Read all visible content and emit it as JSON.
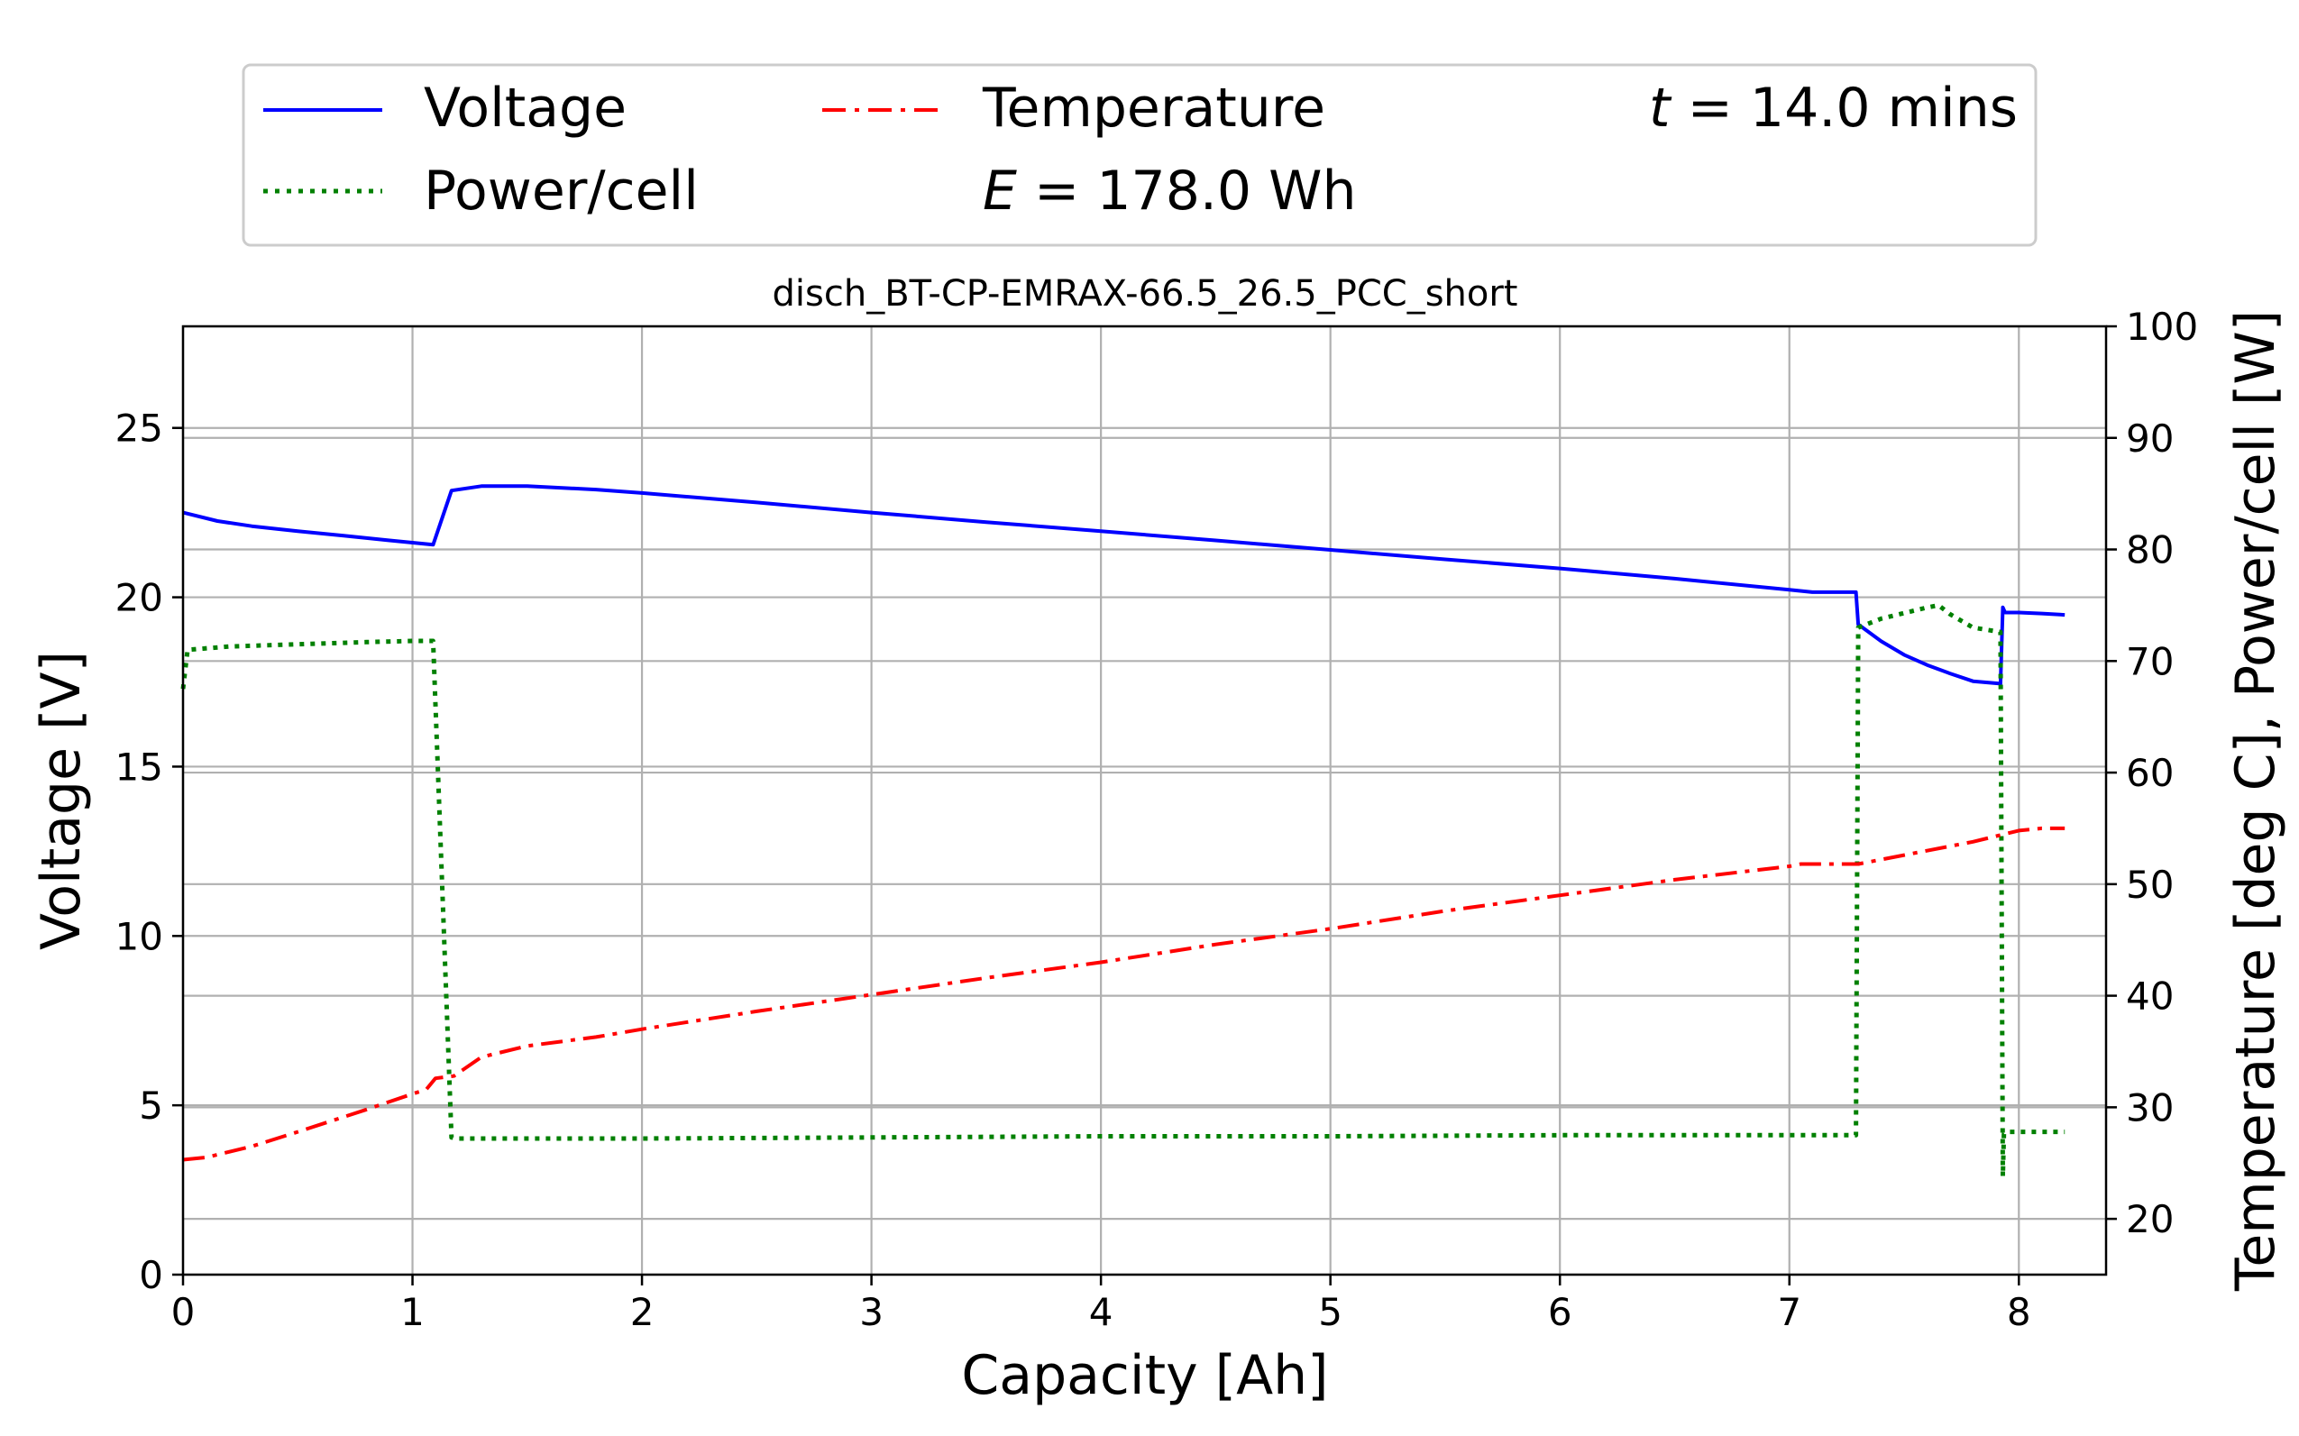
{
  "chart_data": {
    "type": "line",
    "title": "disch_BT-CP-EMRAX-66.5_26.5_PCC_short",
    "xlabel": "Capacity [Ah]",
    "ylabel": "Voltage [V]",
    "y2label": "Temperature [deg C], Power/cell [W]",
    "xlim": [
      0,
      8.38
    ],
    "ylim": [
      0,
      28
    ],
    "y2lim": [
      15,
      100
    ],
    "xticks": [
      "0",
      "1",
      "2",
      "3",
      "4",
      "5",
      "6",
      "7",
      "8"
    ],
    "yticks": [
      "0",
      "5",
      "10",
      "15",
      "20",
      "25"
    ],
    "y2ticks": [
      "20",
      "30",
      "40",
      "50",
      "60",
      "70",
      "80",
      "90",
      "100"
    ],
    "grid": true,
    "legend_position": "top",
    "series": [
      {
        "name": "Voltage",
        "axis": "left",
        "style": "solid",
        "color": "#0000ff",
        "x": [
          0.0,
          0.15,
          0.3,
          0.5,
          0.7,
          0.9,
          1.05,
          1.09,
          1.17,
          1.3,
          1.5,
          1.8,
          2.0,
          2.5,
          3.0,
          3.5,
          4.0,
          4.5,
          5.0,
          5.5,
          6.0,
          6.5,
          7.0,
          7.1,
          7.29,
          7.3,
          7.4,
          7.5,
          7.6,
          7.7,
          7.8,
          7.92,
          7.93,
          7.94,
          8.0,
          8.1,
          8.2
        ],
        "y": [
          22.5,
          22.25,
          22.1,
          21.95,
          21.82,
          21.68,
          21.58,
          21.55,
          23.15,
          23.28,
          23.28,
          23.18,
          23.08,
          22.8,
          22.5,
          22.22,
          21.95,
          21.68,
          21.4,
          21.12,
          20.85,
          20.55,
          20.22,
          20.15,
          20.15,
          19.2,
          18.7,
          18.3,
          18.0,
          17.75,
          17.52,
          17.45,
          19.7,
          19.55,
          19.55,
          19.52,
          19.48
        ]
      },
      {
        "name": "Power/cell",
        "axis": "right",
        "style": "dotted",
        "color": "#008000",
        "x": [
          0.0,
          0.02,
          0.2,
          0.5,
          0.8,
          1.0,
          1.08,
          1.09,
          1.17,
          1.2,
          2.0,
          3.0,
          4.0,
          5.0,
          6.0,
          7.0,
          7.29,
          7.3,
          7.4,
          7.5,
          7.6,
          7.65,
          7.7,
          7.8,
          7.92,
          7.93,
          7.935,
          7.95,
          8.1,
          8.2
        ],
        "y": [
          67.5,
          71.0,
          71.3,
          71.5,
          71.7,
          71.8,
          71.8,
          71.8,
          27.3,
          27.2,
          27.2,
          27.3,
          27.4,
          27.4,
          27.5,
          27.5,
          27.5,
          73.0,
          73.8,
          74.3,
          74.8,
          75.0,
          74.2,
          73.0,
          72.6,
          23.8,
          27.6,
          27.8,
          27.8,
          27.8
        ]
      },
      {
        "name": "Temperature",
        "axis": "right",
        "style": "dashdot",
        "color": "#ff0000",
        "x": [
          0.0,
          0.1,
          0.3,
          0.5,
          0.8,
          1.0,
          1.06,
          1.1,
          1.18,
          1.3,
          1.5,
          1.8,
          2.0,
          2.5,
          3.0,
          3.5,
          4.0,
          4.5,
          5.0,
          5.5,
          6.0,
          6.5,
          7.0,
          7.05,
          7.3,
          7.5,
          7.8,
          8.0,
          8.1,
          8.2
        ],
        "y": [
          25.3,
          25.5,
          26.5,
          27.8,
          29.8,
          31.2,
          31.6,
          32.6,
          32.8,
          34.5,
          35.5,
          36.3,
          37.0,
          38.6,
          40.1,
          41.6,
          43.0,
          44.6,
          46.0,
          47.6,
          49.0,
          50.4,
          51.6,
          51.8,
          51.8,
          52.6,
          53.8,
          54.8,
          55.0,
          55.0
        ]
      }
    ],
    "annotations": {
      "time_prefix": "t",
      "time_value": " = 14.0 mins",
      "energy_prefix": "E",
      "energy_value": " = 178.0 Wh"
    }
  }
}
